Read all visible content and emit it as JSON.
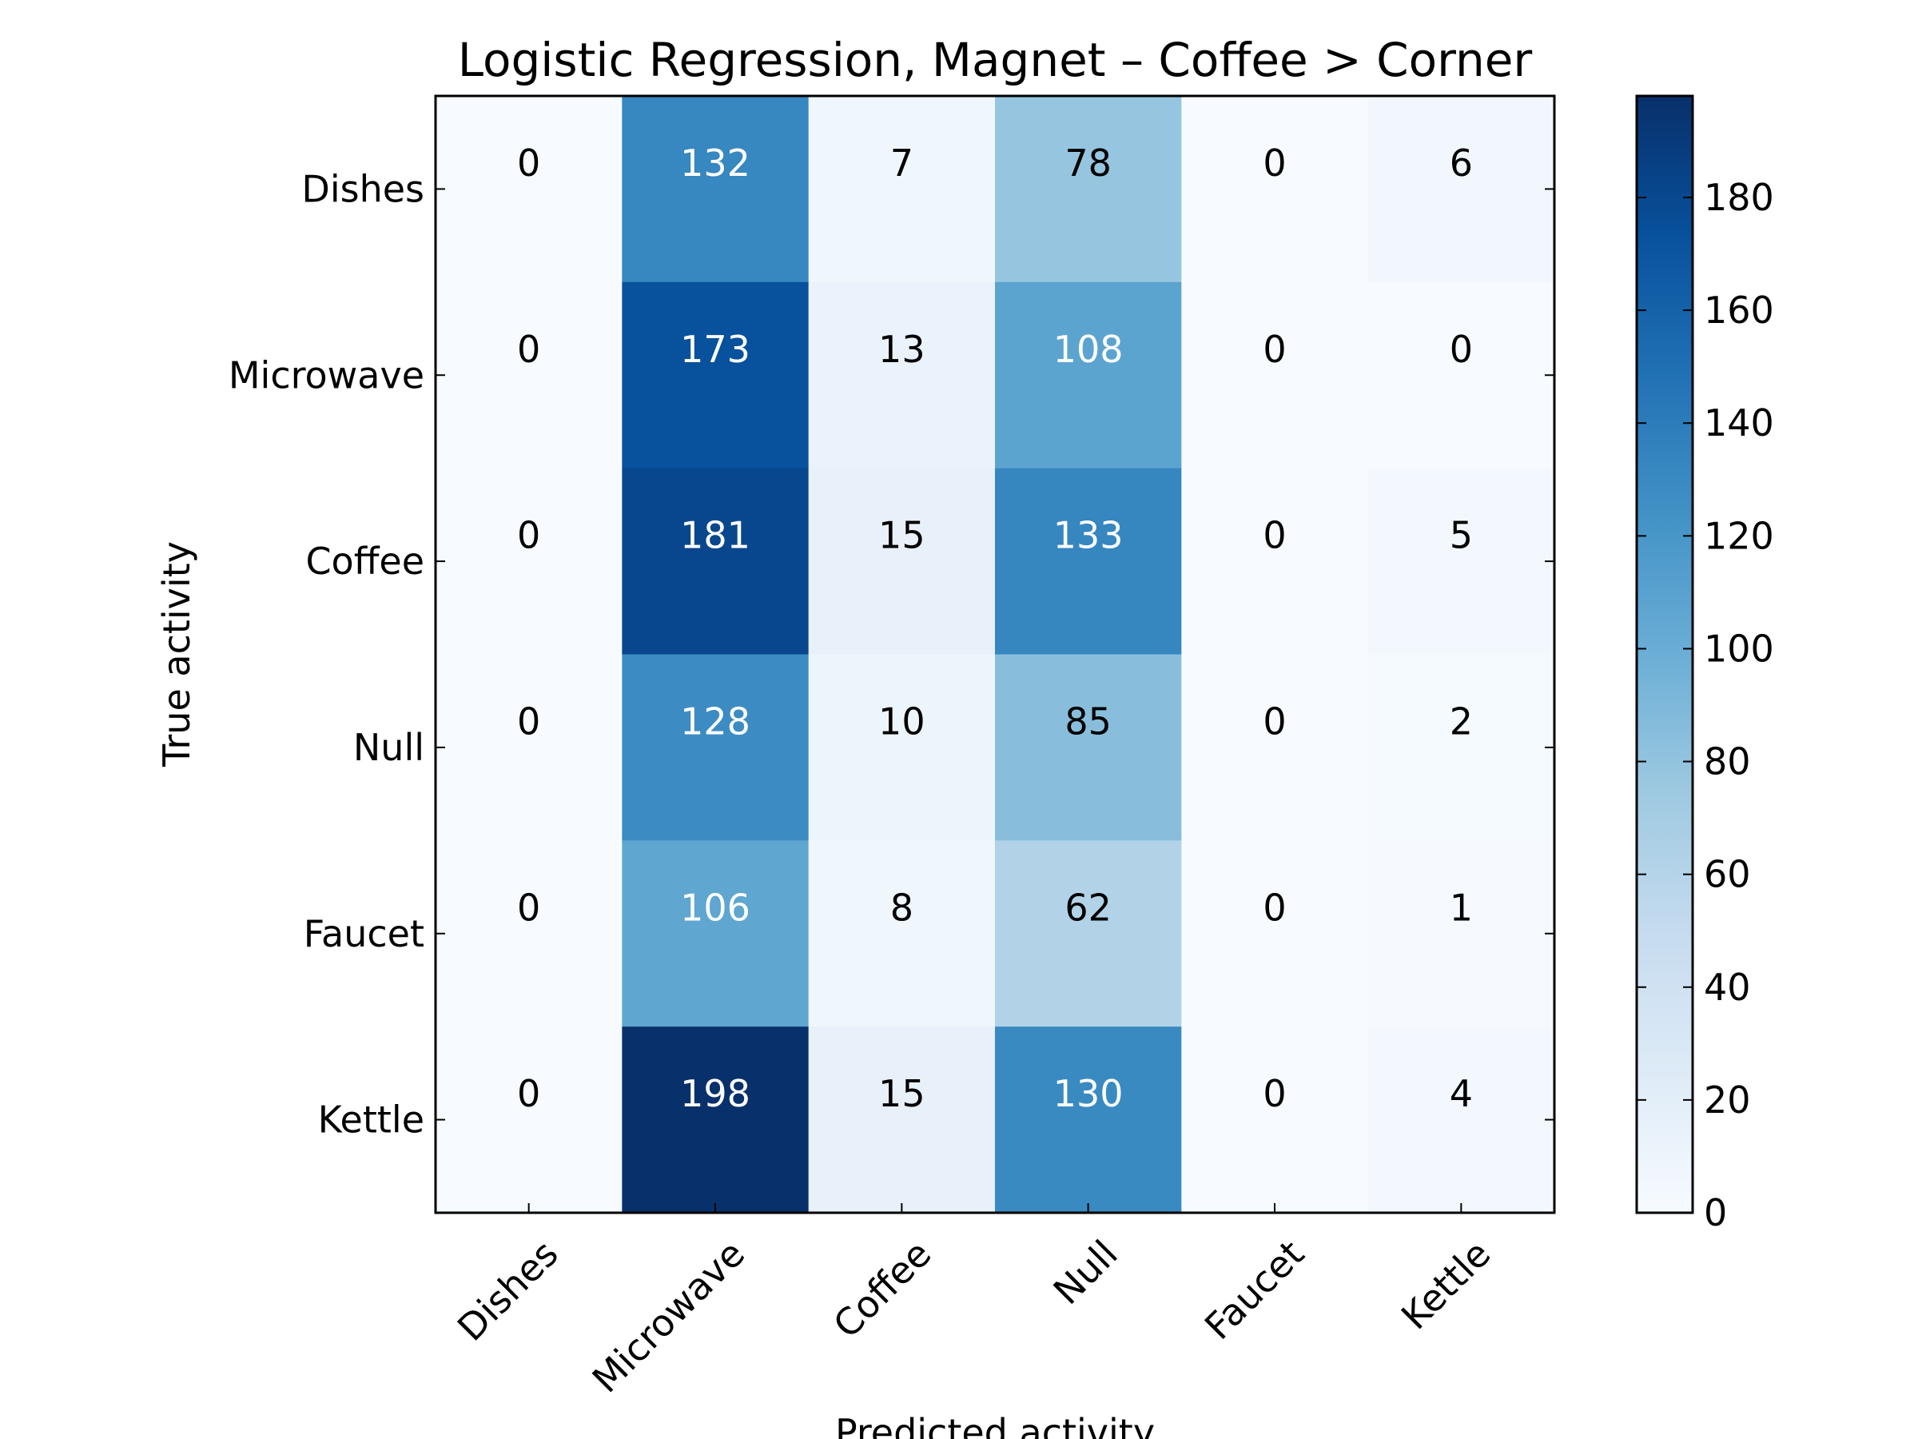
{
  "chart_data": {
    "type": "heatmap",
    "title": "Logistic Regression, Magnet – Coffee > Corner",
    "xlabel": "Predicted activity",
    "ylabel": "True activity",
    "x_categories": [
      "Dishes",
      "Microwave",
      "Coffee",
      "Null",
      "Faucet",
      "Kettle"
    ],
    "y_categories": [
      "Dishes",
      "Microwave",
      "Coffee",
      "Null",
      "Faucet",
      "Kettle"
    ],
    "values": [
      [
        0,
        132,
        7,
        78,
        0,
        6
      ],
      [
        0,
        173,
        13,
        108,
        0,
        0
      ],
      [
        0,
        181,
        15,
        133,
        0,
        5
      ],
      [
        0,
        128,
        10,
        85,
        0,
        2
      ],
      [
        0,
        106,
        8,
        62,
        0,
        1
      ],
      [
        0,
        198,
        15,
        130,
        0,
        4
      ]
    ],
    "colormap": "Blues",
    "color_range": [
      0,
      198
    ],
    "colorbar_ticks": [
      "0",
      "20",
      "40",
      "60",
      "80",
      "100",
      "120",
      "140",
      "160",
      "180"
    ],
    "colors": {
      "text_light": "#ffffff",
      "text_dark": "#000000",
      "frame": "#000000"
    }
  }
}
